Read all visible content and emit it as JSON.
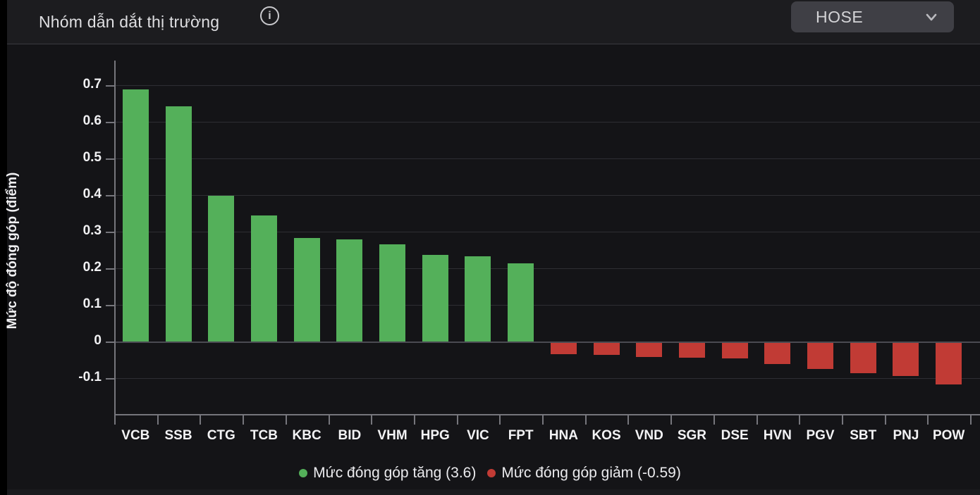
{
  "header": {
    "title": "Nhóm dẫn dắt thị trường",
    "exchange_selector": {
      "value": "HOSE"
    }
  },
  "icons": {
    "info": "info-icon",
    "chevron_down": "chevron-down-icon"
  },
  "colors": {
    "positive": "#54b05a",
    "negative": "#c13b35",
    "background": "#141417",
    "header_background": "#1c1c1f",
    "axis": "#76767c",
    "gridline": "#2e2e33"
  },
  "chart_data": {
    "type": "bar",
    "title": "Nhóm dẫn dắt thị trường",
    "ylabel": "Mức độ đóng góp (điểm)",
    "xlabel": "",
    "grid": true,
    "legend_position": "bottom",
    "ylim": [
      -0.15,
      0.78
    ],
    "yticks": [
      0.7,
      0.6,
      0.5,
      0.4,
      0.3,
      0.2,
      0.1,
      0,
      -0.1
    ],
    "ytick_labels": [
      "0.7",
      "0.6",
      "0.5",
      "0.4",
      "0.3",
      "0.2",
      "0.1",
      "0",
      "-0.1"
    ],
    "categories": [
      "VCB",
      "SSB",
      "CTG",
      "TCB",
      "KBC",
      "BID",
      "VHM",
      "HPG",
      "VIC",
      "FPT",
      "HNA",
      "KOS",
      "VND",
      "SGR",
      "DSE",
      "HVN",
      "PGV",
      "SBT",
      "PNJ",
      "POW"
    ],
    "values": [
      0.688,
      0.643,
      0.398,
      0.344,
      0.282,
      0.278,
      0.266,
      0.236,
      0.233,
      0.214,
      -0.03,
      -0.033,
      -0.038,
      -0.04,
      -0.043,
      -0.057,
      -0.072,
      -0.082,
      -0.09,
      -0.113
    ],
    "positive_total": "3.6",
    "negative_total": "-0.59",
    "legend": [
      {
        "label": "Mức đóng góp tăng (3.6)",
        "color": "#54b05a"
      },
      {
        "label": "Mức đóng góp giảm (-0.59)",
        "color": "#c13b35"
      }
    ]
  }
}
